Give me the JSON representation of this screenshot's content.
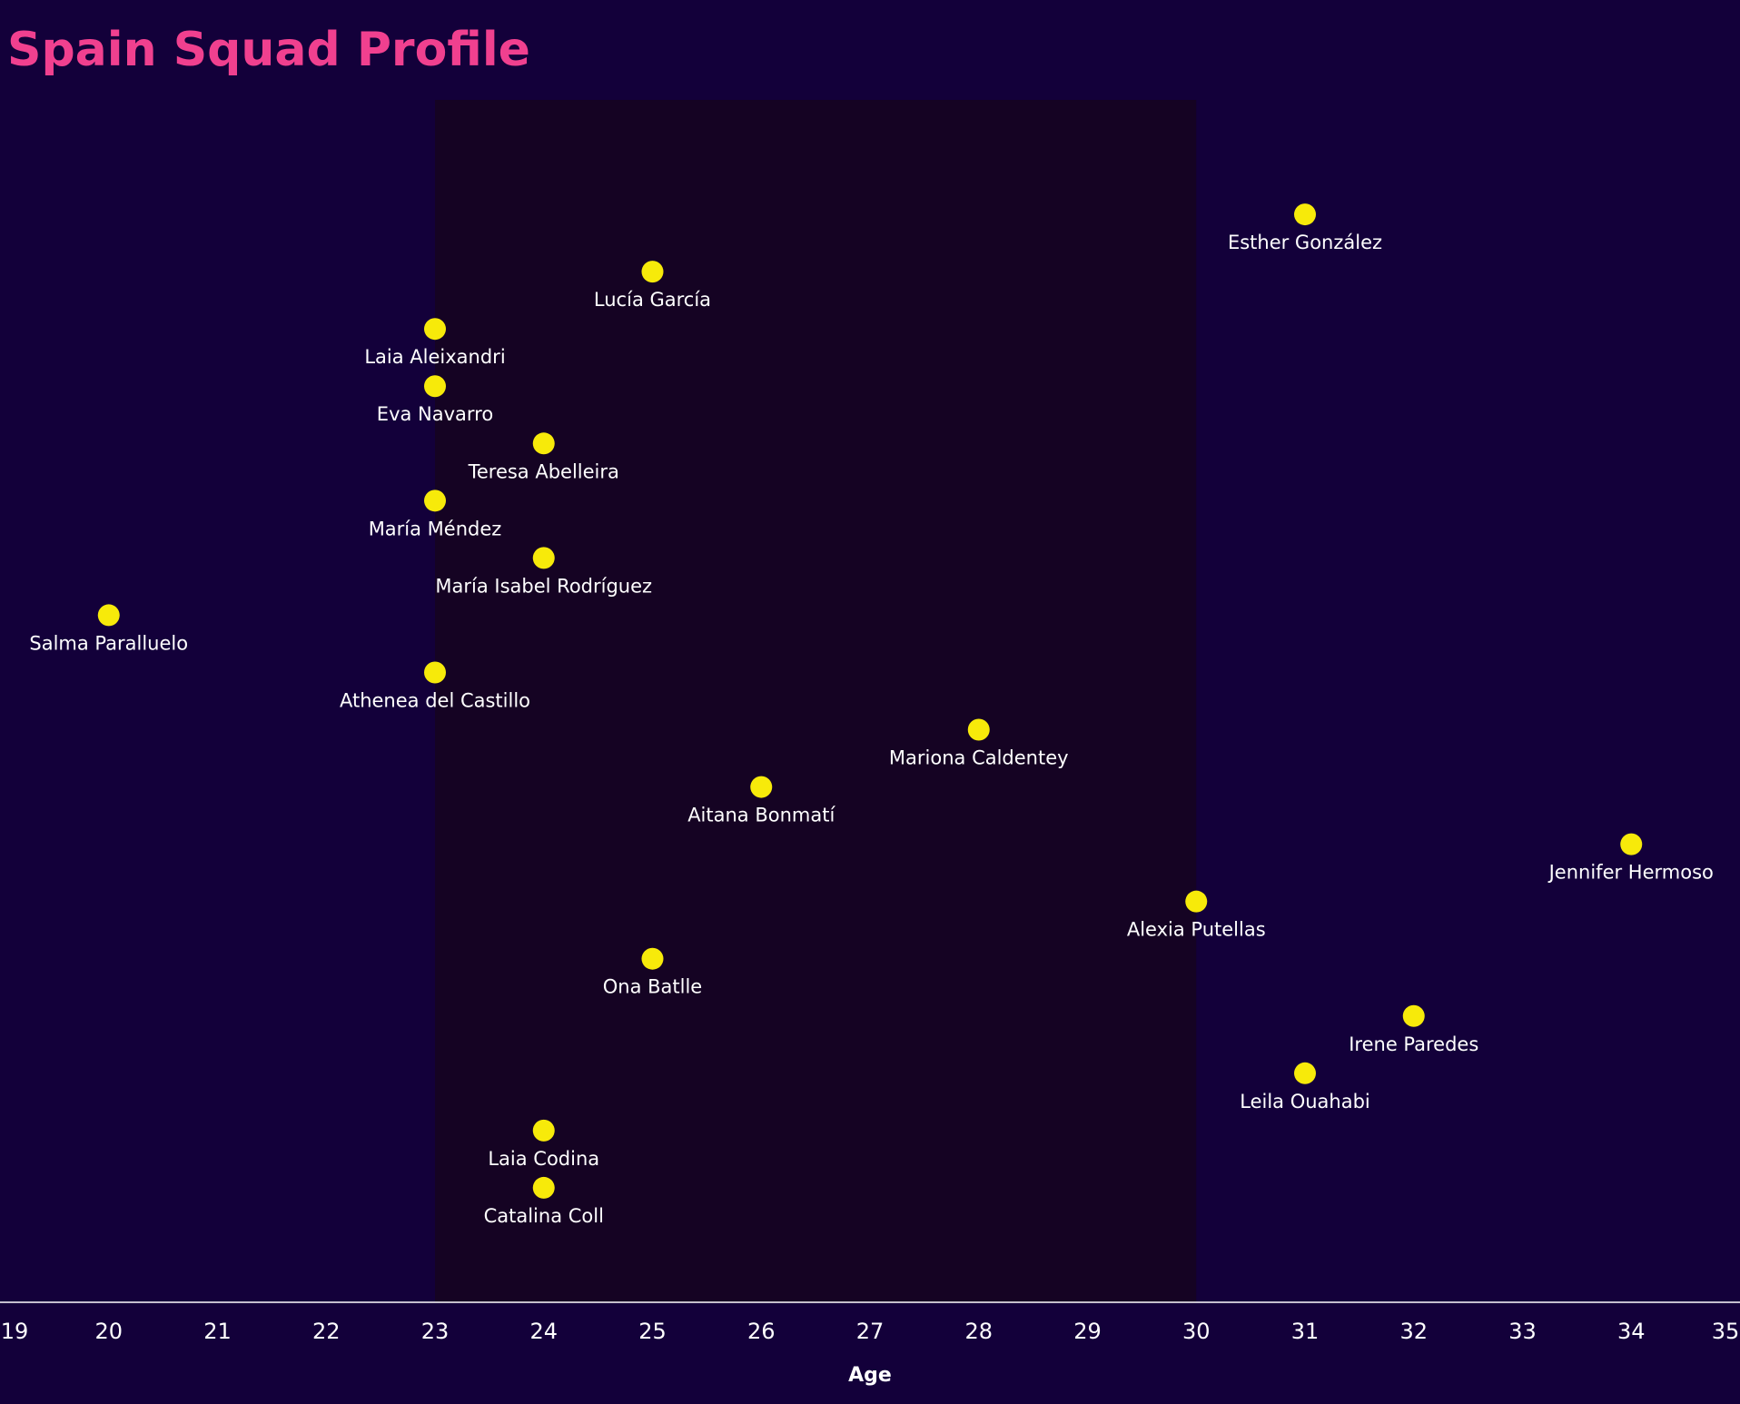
{
  "chart_data": {
    "type": "dot",
    "title": "Spain Squad Profile",
    "x_label": "Age",
    "categories": [
      "Esther González",
      "Lucía García",
      "Laia Aleixandri",
      "Eva Navarro",
      "Teresa Abelleira",
      "María Méndez",
      "María Isabel Rodríguez",
      "Salma Paralluelo",
      "Athenea del Castillo",
      "Mariona Caldentey",
      "Aitana Bonmatí",
      "Jennifer Hermoso",
      "Alexia Putellas",
      "Ona Batlle",
      "Irene Paredes",
      "Leila Ouahabi",
      "Laia Codina",
      "Catalina Coll"
    ],
    "x": [
      31,
      25,
      23,
      23,
      24,
      23,
      24,
      20,
      23,
      28,
      26,
      34,
      30,
      25,
      32,
      31,
      24,
      24
    ],
    "color": "#f7ea0a",
    "highlight_range": [
      23,
      30
    ],
    "xlim": [
      19,
      35
    ],
    "xticks": [
      19,
      20,
      21,
      22,
      23,
      24,
      25,
      26,
      27,
      28,
      29,
      30,
      31,
      32,
      33,
      34,
      35
    ]
  }
}
